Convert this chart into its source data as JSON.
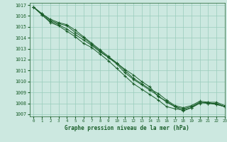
{
  "title": "Graphe pression niveau de la mer (hPa)",
  "xlim": [
    -0.5,
    23
  ],
  "ylim": [
    1006.8,
    1017.2
  ],
  "yticks": [
    1007,
    1008,
    1009,
    1010,
    1011,
    1012,
    1013,
    1014,
    1015,
    1016,
    1017
  ],
  "xticks": [
    0,
    1,
    2,
    3,
    4,
    5,
    6,
    7,
    8,
    9,
    10,
    11,
    12,
    13,
    14,
    15,
    16,
    17,
    18,
    19,
    20,
    21,
    22,
    23
  ],
  "bg_color": "#cce8e0",
  "grid_color": "#99ccbb",
  "line_color": "#1a5e2a",
  "marker": "+",
  "lines": [
    [
      1016.8,
      1016.1,
      1015.5,
      1015.2,
      1014.8,
      1014.3,
      1013.8,
      1013.3,
      1012.7,
      1012.2,
      1011.7,
      1011.1,
      1010.6,
      1010.0,
      1009.5,
      1008.6,
      1008.2,
      1007.7,
      1007.3,
      1007.6,
      1008.0,
      1008.1,
      1007.9,
      1007.7
    ],
    [
      1016.8,
      1016.1,
      1015.4,
      1015.1,
      1014.6,
      1014.1,
      1013.5,
      1013.1,
      1012.5,
      1011.9,
      1011.2,
      1010.5,
      1009.8,
      1009.3,
      1008.8,
      1008.3,
      1007.7,
      1007.5,
      1007.4,
      1007.6,
      1008.1,
      1008.0,
      1007.9,
      1007.7
    ],
    [
      1016.8,
      1016.2,
      1015.6,
      1015.3,
      1015.1,
      1014.5,
      1014.0,
      1013.4,
      1012.8,
      1012.2,
      1011.6,
      1010.8,
      1010.2,
      1009.7,
      1009.2,
      1008.7,
      1008.1,
      1007.7,
      1007.5,
      1007.7,
      1008.1,
      1008.0,
      1008.0,
      1007.7
    ],
    [
      1016.8,
      1016.2,
      1015.7,
      1015.4,
      1015.2,
      1014.7,
      1014.1,
      1013.5,
      1012.9,
      1012.3,
      1011.7,
      1011.0,
      1010.3,
      1009.8,
      1009.3,
      1008.9,
      1008.3,
      1007.8,
      1007.6,
      1007.8,
      1008.2,
      1008.1,
      1008.1,
      1007.8
    ]
  ]
}
